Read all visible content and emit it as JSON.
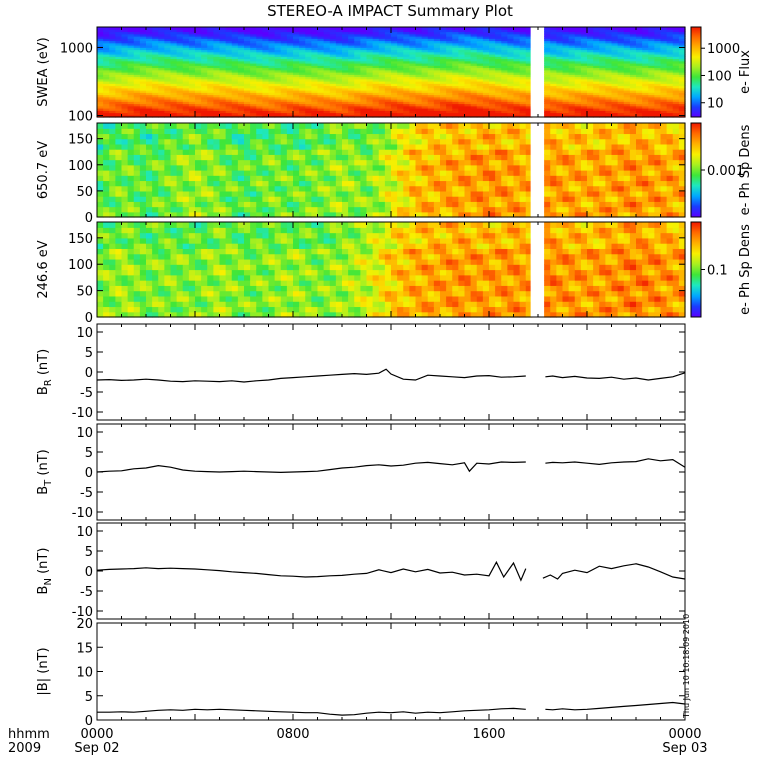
{
  "title": "STEREO-A IMPACT Summary Plot",
  "footer": {
    "hhmm": "hhmm",
    "year": "2009",
    "ticks": [
      {
        "top": "0000",
        "bottom": "Sep 02"
      },
      {
        "top": "0800",
        "bottom": ""
      },
      {
        "top": "1600",
        "bottom": ""
      },
      {
        "top": "0000",
        "bottom": "Sep 03"
      }
    ]
  },
  "timestamp": "Thu Jun 10 10:18:09 2010",
  "colors": {
    "frame": "#000000",
    "line": "#000000",
    "gap": "#ffffff"
  },
  "colormap": [
    "#5a00ff",
    "#1a3cff",
    "#00a8ff",
    "#1de8c0",
    "#3ee63a",
    "#a8f020",
    "#f8f000",
    "#ffb000",
    "#ff6a00",
    "#f01800"
  ],
  "chart_data": [
    {
      "type": "heatmap",
      "ylabel": "SWEA (eV)",
      "yscale": "log",
      "ylim": [
        95,
        2000
      ],
      "y_ticks": [
        "1000",
        "100"
      ],
      "y_tick_values": [
        1000,
        100
      ],
      "x_range_hours": [
        0,
        24
      ],
      "data_gap_hours": [
        17.7,
        18.2
      ],
      "colorbar": {
        "label": "e- Flux",
        "ticks": [
          "1000",
          "100",
          "10"
        ],
        "tick_values": [
          1000,
          100,
          10
        ],
        "scale": "log",
        "range": [
          3,
          6000
        ]
      },
      "y_bands": [
        100,
        200,
        300,
        400,
        500,
        600,
        800,
        1000,
        1400,
        2000
      ],
      "x": [
        0,
        1,
        2,
        3,
        4,
        5,
        6,
        7,
        8,
        9,
        10,
        11,
        12,
        13,
        14,
        15,
        16,
        17,
        17.7,
        18.2,
        19,
        20,
        21,
        22,
        23,
        24
      ],
      "level_offsets": [
        0,
        0.05,
        0.1,
        0.1,
        0.05,
        0.1,
        0.05,
        0,
        0.05,
        0.05,
        0,
        0.1,
        0.15,
        0.1,
        0.15,
        0.2,
        0.15,
        0.1,
        0.1,
        0.1,
        0.05,
        0.1,
        0.1,
        0.05,
        0.1,
        0.1
      ]
    },
    {
      "type": "heatmap",
      "ylabel": "650.7 eV",
      "ylim": [
        0,
        180
      ],
      "y_ticks": [
        "150",
        "100",
        "50",
        "0"
      ],
      "y_tick_values": [
        150,
        100,
        50,
        0
      ],
      "x_range_hours": [
        0,
        24
      ],
      "data_gap_hours": [
        17.7,
        18.2
      ],
      "colorbar": {
        "label": "e- Ph Sp Dens",
        "ticks": [
          "0.001"
        ],
        "tick_values": [
          0.5
        ],
        "scale": "log"
      },
      "level": [
        0.45,
        0.5,
        0.45,
        0.5,
        0.55,
        0.5,
        0.45,
        0.5,
        0.48,
        0.5,
        0.55,
        0.5,
        0.62,
        0.75,
        0.78,
        0.8,
        0.82,
        0.8,
        0.78,
        0.82,
        0.8,
        0.78,
        0.8,
        0.82,
        0.8,
        0.78
      ],
      "x": [
        0,
        1,
        2,
        3,
        4,
        5,
        6,
        7,
        8,
        9,
        10,
        11,
        12,
        13,
        14,
        15,
        16,
        17,
        17.7,
        18.2,
        19,
        20,
        21,
        22,
        23,
        24
      ]
    },
    {
      "type": "heatmap",
      "ylabel": "246.6 eV",
      "ylim": [
        0,
        180
      ],
      "y_ticks": [
        "150",
        "100",
        "50",
        "0"
      ],
      "y_tick_values": [
        150,
        100,
        50,
        0
      ],
      "x_range_hours": [
        0,
        24
      ],
      "data_gap_hours": [
        17.7,
        18.2
      ],
      "colorbar": {
        "label": "e- Ph Sp Dens",
        "ticks": [
          "0.1"
        ],
        "tick_values": [
          0.5
        ],
        "scale": "log"
      },
      "level": [
        0.5,
        0.55,
        0.5,
        0.52,
        0.5,
        0.55,
        0.5,
        0.52,
        0.55,
        0.5,
        0.55,
        0.6,
        0.72,
        0.78,
        0.8,
        0.82,
        0.8,
        0.82,
        0.8,
        0.85,
        0.82,
        0.8,
        0.82,
        0.85,
        0.82,
        0.8
      ],
      "x": [
        0,
        1,
        2,
        3,
        4,
        5,
        6,
        7,
        8,
        9,
        10,
        11,
        12,
        13,
        14,
        15,
        16,
        17,
        17.7,
        18.2,
        19,
        20,
        21,
        22,
        23,
        24
      ]
    },
    {
      "type": "line",
      "ylabel": "B_R (nT)",
      "ylabel_main": "B",
      "ylabel_sub": "R",
      "ylabel_unit": " (nT)",
      "ylim": [
        -12,
        12
      ],
      "y_ticks": [
        "10",
        "5",
        "0",
        "-5",
        "-10"
      ],
      "y_tick_values": [
        10,
        5,
        0,
        -5,
        -10
      ],
      "x_range_hours": [
        0,
        24
      ],
      "segments": [
        {
          "x": [
            0,
            0.5,
            1,
            1.5,
            2,
            2.5,
            3,
            3.5,
            4,
            4.5,
            5,
            5.5,
            6,
            6.5,
            7,
            7.5,
            8,
            8.5,
            9,
            9.5,
            10,
            10.5,
            11,
            11.5,
            11.8,
            12,
            12.5,
            13,
            13.5,
            14,
            14.5,
            15,
            15.5,
            16,
            16.5,
            17,
            17.5
          ],
          "y": [
            -2,
            -1.9,
            -2.1,
            -2,
            -1.8,
            -2,
            -2.3,
            -2.4,
            -2.2,
            -2.3,
            -2.4,
            -2.2,
            -2.5,
            -2.2,
            -2,
            -1.6,
            -1.4,
            -1.2,
            -1,
            -0.8,
            -0.6,
            -0.4,
            -0.6,
            -0.3,
            0.7,
            -0.5,
            -1.8,
            -2,
            -0.8,
            -1,
            -1.2,
            -1.4,
            -1,
            -0.9,
            -1.3,
            -1.2,
            -1
          ]
        },
        {
          "x": [
            18.3,
            18.6,
            19,
            19.5,
            20,
            20.5,
            21,
            21.5,
            22,
            22.5,
            23,
            23.5,
            24
          ],
          "y": [
            -1.2,
            -1,
            -1.4,
            -1.1,
            -1.5,
            -1.6,
            -1.3,
            -1.8,
            -1.5,
            -2,
            -1.6,
            -1.2,
            -0.2
          ]
        }
      ]
    },
    {
      "type": "line",
      "ylabel": "B_T (nT)",
      "ylabel_main": "B",
      "ylabel_sub": "T",
      "ylabel_unit": " (nT)",
      "ylim": [
        -12,
        12
      ],
      "y_ticks": [
        "10",
        "5",
        "0",
        "-5",
        "-10"
      ],
      "y_tick_values": [
        10,
        5,
        0,
        -5,
        -10
      ],
      "x_range_hours": [
        0,
        24
      ],
      "segments": [
        {
          "x": [
            0,
            0.5,
            1,
            1.5,
            2,
            2.5,
            3,
            3.5,
            4,
            4.5,
            5,
            5.5,
            6,
            6.5,
            7,
            7.5,
            8,
            8.5,
            9,
            9.5,
            10,
            10.5,
            11,
            11.5,
            12,
            12.5,
            13,
            13.5,
            14,
            14.5,
            15,
            15.2,
            15.5,
            16,
            16.5,
            17,
            17.5
          ],
          "y": [
            0,
            0.2,
            0.3,
            0.8,
            1,
            1.6,
            1.2,
            0.5,
            0.2,
            0.1,
            0,
            0.1,
            0.2,
            0.1,
            0,
            -0.1,
            0,
            0.1,
            0.2,
            0.6,
            1,
            1.2,
            1.6,
            1.8,
            1.5,
            1.7,
            2.2,
            2.4,
            2.1,
            1.8,
            2.3,
            0.2,
            2.2,
            2,
            2.5,
            2.4,
            2.5
          ]
        },
        {
          "x": [
            18.3,
            18.6,
            19,
            19.5,
            20,
            20.5,
            21,
            21.5,
            22,
            22.5,
            23,
            23.5,
            24
          ],
          "y": [
            2.2,
            2.4,
            2.3,
            2.5,
            2.2,
            1.9,
            2.3,
            2.5,
            2.6,
            3.3,
            2.8,
            3.1,
            1.2
          ]
        }
      ]
    },
    {
      "type": "line",
      "ylabel": "B_N (nT)",
      "ylabel_main": "B",
      "ylabel_sub": "N",
      "ylabel_unit": " (nT)",
      "ylim": [
        -12,
        12
      ],
      "y_ticks": [
        "10",
        "5",
        "0",
        "-5",
        "-10"
      ],
      "y_tick_values": [
        10,
        5,
        0,
        -5,
        -10
      ],
      "x_range_hours": [
        0,
        24
      ],
      "segments": [
        {
          "x": [
            0,
            0.5,
            1,
            1.5,
            2,
            2.5,
            3,
            3.5,
            4,
            4.5,
            5,
            5.5,
            6,
            6.5,
            7,
            7.5,
            8,
            8.5,
            9,
            9.5,
            10,
            10.5,
            11,
            11.5,
            12,
            12.5,
            13,
            13.5,
            14,
            14.5,
            15,
            15.5,
            16,
            16.3,
            16.6,
            17,
            17.3,
            17.5
          ],
          "y": [
            0.2,
            0.4,
            0.5,
            0.6,
            0.8,
            0.6,
            0.7,
            0.6,
            0.5,
            0.3,
            0.1,
            -0.2,
            -0.4,
            -0.6,
            -0.9,
            -1.2,
            -1.3,
            -1.5,
            -1.4,
            -1.2,
            -1.1,
            -0.8,
            -0.6,
            0.3,
            -0.4,
            0.5,
            -0.2,
            0.4,
            -0.5,
            -0.3,
            -1,
            -0.8,
            -1.2,
            2.2,
            -1.5,
            2,
            -2.3,
            0.6
          ]
        },
        {
          "x": [
            18.2,
            18.5,
            18.8,
            19,
            19.5,
            20,
            20.5,
            21,
            21.5,
            22,
            22.5,
            23,
            23.5,
            24
          ],
          "y": [
            -1.8,
            -1,
            -2,
            -0.6,
            0.2,
            -0.4,
            1.2,
            0.6,
            1.3,
            1.8,
            1,
            -0.2,
            -1.5,
            -2
          ]
        }
      ]
    },
    {
      "type": "line",
      "ylabel": "|B| (nT)",
      "ylabel_main": "|B|",
      "ylabel_sub": "",
      "ylabel_unit": " (nT)",
      "ylim": [
        0,
        20
      ],
      "y_ticks": [
        "20",
        "15",
        "10",
        "5",
        "0"
      ],
      "y_tick_values": [
        20,
        15,
        10,
        5,
        0
      ],
      "x_range_hours": [
        0,
        24
      ],
      "segments": [
        {
          "x": [
            0,
            0.5,
            1,
            1.5,
            2,
            2.5,
            3,
            3.5,
            4,
            4.5,
            5,
            5.5,
            6,
            6.5,
            7,
            7.5,
            8,
            8.5,
            9,
            9.5,
            10,
            10.5,
            11,
            11.5,
            12,
            12.5,
            13,
            13.5,
            14,
            14.5,
            15,
            15.5,
            16,
            16.5,
            17,
            17.5
          ],
          "y": [
            1.6,
            1.6,
            1.7,
            1.6,
            1.8,
            2,
            2.1,
            2,
            2.2,
            2.1,
            2.2,
            2.1,
            2,
            1.9,
            1.8,
            1.7,
            1.6,
            1.5,
            1.5,
            1.2,
            1,
            1.1,
            1.4,
            1.6,
            1.5,
            1.7,
            1.4,
            1.6,
            1.5,
            1.7,
            1.9,
            2,
            2.1,
            2.3,
            2.4,
            2.2
          ]
        },
        {
          "x": [
            18.3,
            18.6,
            19,
            19.5,
            20,
            20.5,
            21,
            21.5,
            22,
            22.5,
            23,
            23.5,
            24
          ],
          "y": [
            2.2,
            2.1,
            2.3,
            2.1,
            2.2,
            2.4,
            2.6,
            2.8,
            3,
            3.2,
            3.4,
            3.6,
            3.3
          ]
        }
      ]
    }
  ]
}
